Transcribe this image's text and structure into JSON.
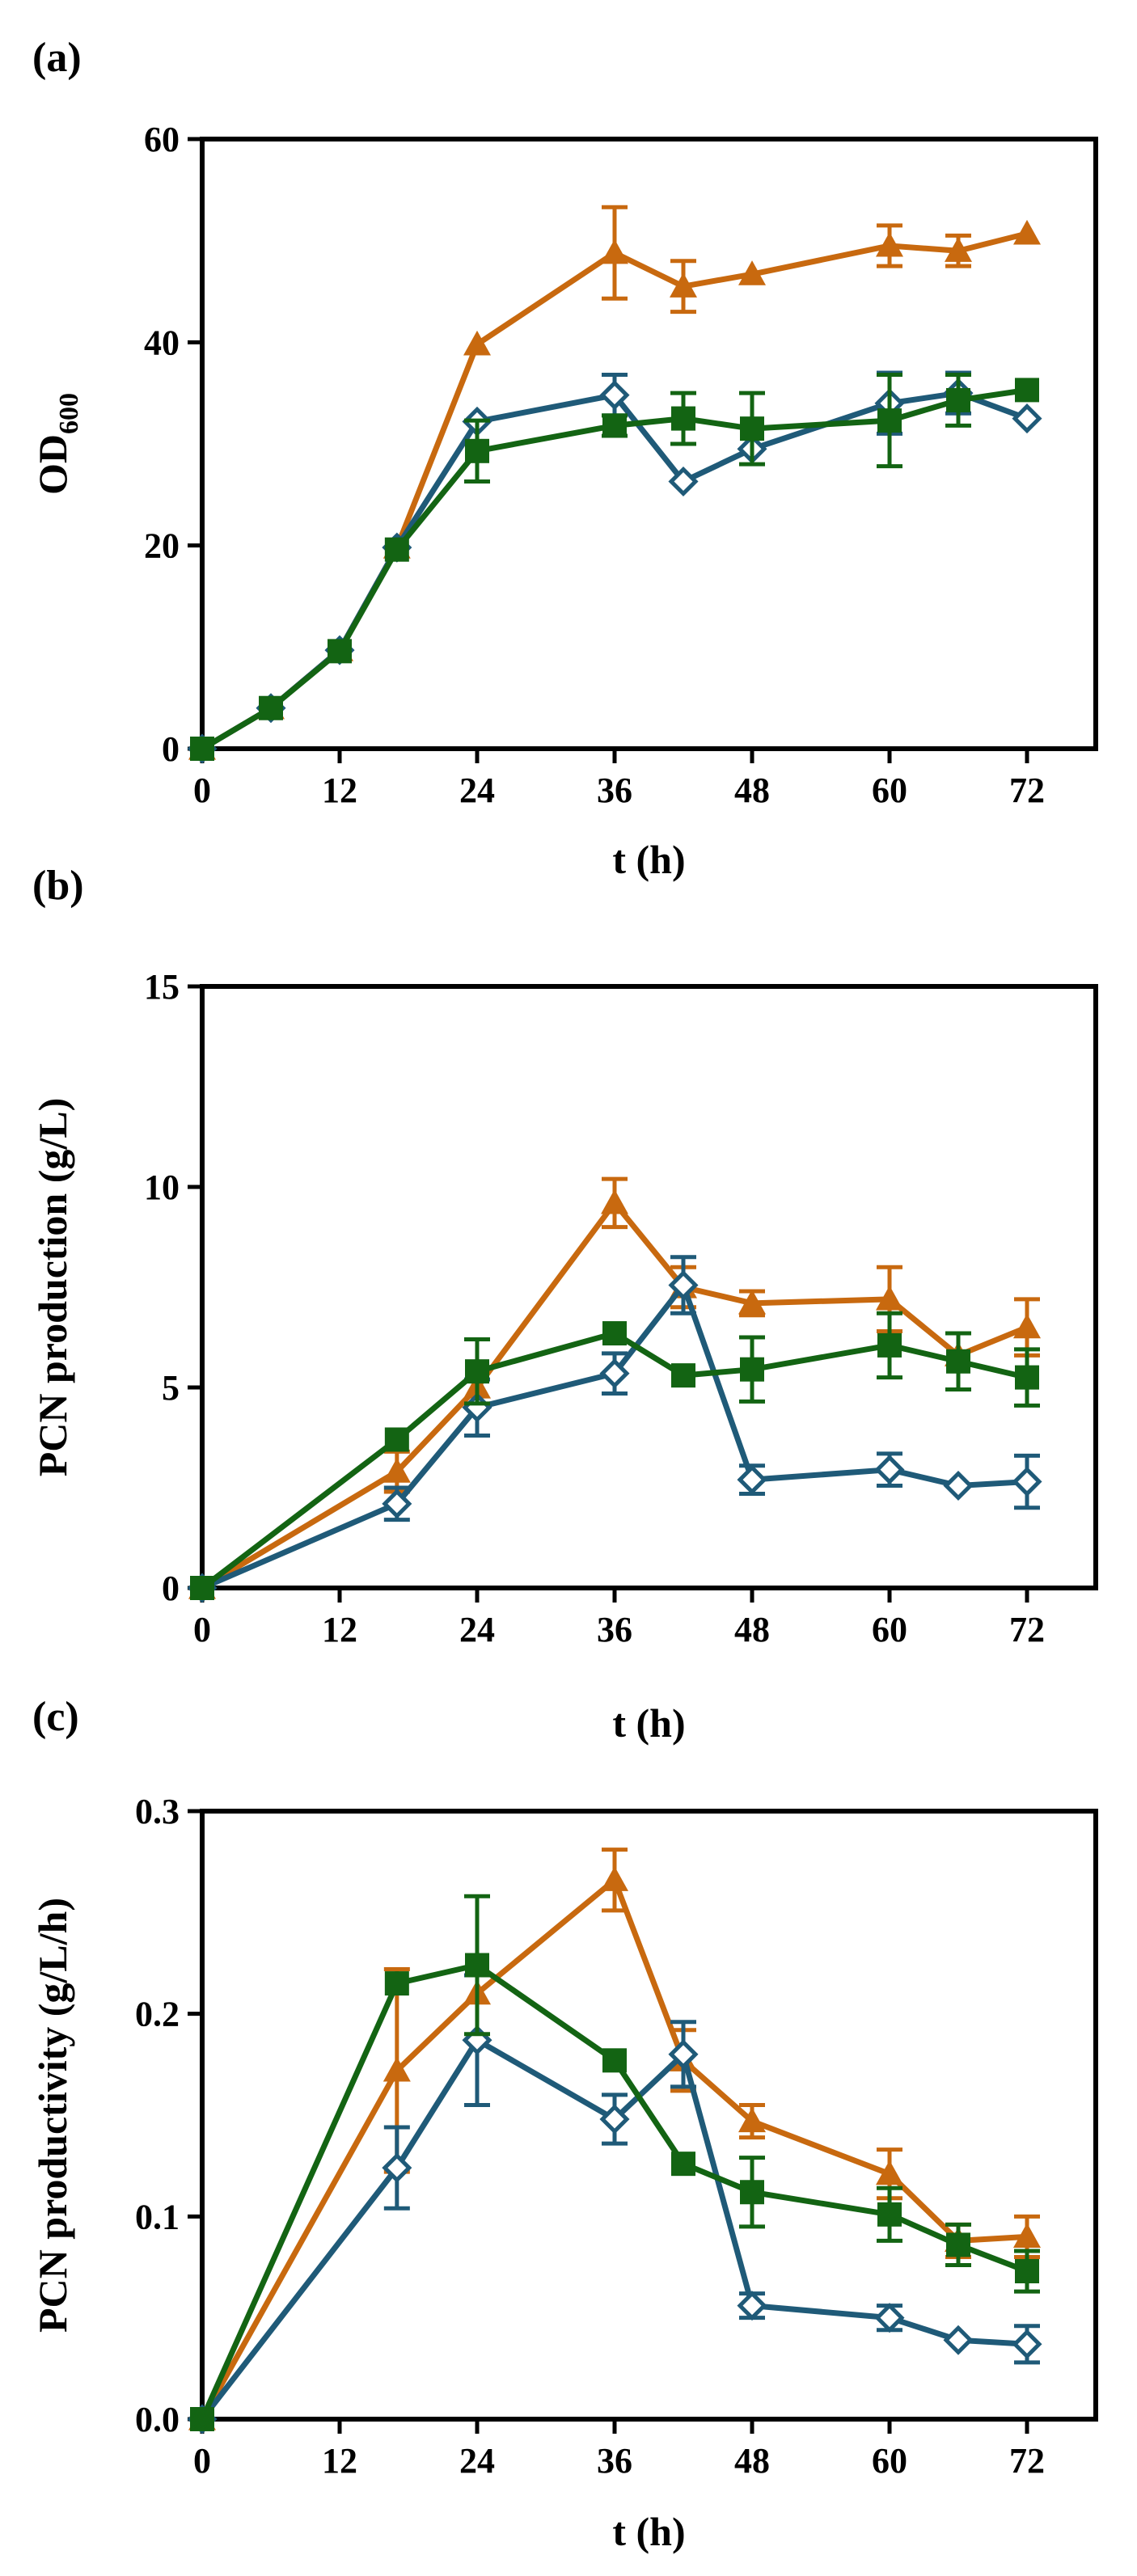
{
  "chart_data": [
    {
      "type": "line",
      "panel_label": "(a)",
      "xlabel": "t (h)",
      "ylabel": "OD",
      "ylabel_sub": "600",
      "xlim": [
        0,
        78
      ],
      "ylim": [
        0,
        60
      ],
      "xticks": [
        0,
        12,
        24,
        36,
        48,
        60,
        72
      ],
      "yticks": [
        0,
        20,
        40,
        60
      ],
      "ytick_labels": [
        "0",
        "20",
        "40",
        "60"
      ],
      "series": [
        {
          "name": "triangle-series",
          "marker": "triangle",
          "color": "#c8690f",
          "x": [
            0,
            6,
            12,
            17,
            24,
            36,
            42,
            48,
            60,
            66,
            72
          ],
          "values": [
            0,
            4,
            9.7,
            19.8,
            39.8,
            48.8,
            45.5,
            46.7,
            49.5,
            49,
            50.7
          ],
          "errors": [
            0,
            0,
            0,
            0,
            0,
            4.5,
            2.5,
            0,
            2,
            1.5,
            0
          ]
        },
        {
          "name": "diamond-series",
          "marker": "diamond",
          "color": "#1f5a78",
          "x": [
            0,
            6,
            12,
            17,
            24,
            36,
            42,
            48,
            60,
            66,
            72
          ],
          "values": [
            0,
            4,
            9.7,
            19.8,
            32.2,
            34.8,
            26.3,
            29.5,
            34,
            35,
            32.5
          ],
          "errors": [
            0,
            0,
            0,
            0,
            0,
            2,
            0,
            0,
            3,
            2,
            0
          ]
        },
        {
          "name": "square-series",
          "marker": "square",
          "color": "#136413",
          "x": [
            0,
            6,
            12,
            17,
            24,
            36,
            42,
            48,
            60,
            66,
            72
          ],
          "values": [
            0,
            4,
            9.6,
            19.6,
            29.3,
            31.8,
            32.5,
            31.5,
            32.3,
            34.3,
            35.3
          ],
          "errors": [
            0,
            0,
            0,
            0,
            3,
            1,
            2.5,
            3.5,
            4.5,
            2.5,
            0
          ]
        }
      ]
    },
    {
      "type": "line",
      "panel_label": "(b)",
      "xlabel": "t (h)",
      "ylabel": "PCN production (g/L)",
      "xlim": [
        0,
        78
      ],
      "ylim": [
        0,
        15
      ],
      "xticks": [
        0,
        12,
        24,
        36,
        48,
        60,
        72
      ],
      "yticks": [
        0,
        5,
        10,
        15
      ],
      "ytick_labels": [
        "0",
        "5",
        "10",
        "15"
      ],
      "series": [
        {
          "name": "triangle-series",
          "marker": "triangle",
          "color": "#c8690f",
          "x": [
            0,
            17,
            24,
            36,
            42,
            48,
            60,
            66,
            72
          ],
          "values": [
            0,
            2.9,
            5,
            9.6,
            7.5,
            7.1,
            7.2,
            5.8,
            6.5
          ],
          "errors": [
            0,
            0.5,
            0,
            0.6,
            0.5,
            0.3,
            0.8,
            0,
            0.7
          ]
        },
        {
          "name": "diamond-series",
          "marker": "diamond",
          "color": "#1f5a78",
          "x": [
            0,
            17,
            24,
            36,
            42,
            48,
            60,
            66,
            72
          ],
          "values": [
            0,
            2.1,
            4.5,
            5.35,
            7.55,
            2.7,
            2.95,
            2.55,
            2.65
          ],
          "errors": [
            0,
            0.4,
            0.7,
            0.5,
            0.7,
            0.35,
            0.4,
            0,
            0.65
          ]
        },
        {
          "name": "square-series",
          "marker": "square",
          "color": "#136413",
          "x": [
            0,
            17,
            24,
            36,
            42,
            48,
            60,
            66,
            72
          ],
          "values": [
            0,
            3.7,
            5.4,
            6.35,
            5.3,
            5.45,
            6.05,
            5.65,
            5.25
          ],
          "errors": [
            0,
            0,
            0.8,
            0,
            0,
            0.8,
            0.8,
            0.7,
            0.7
          ]
        }
      ]
    },
    {
      "type": "line",
      "panel_label": "(c)",
      "xlabel": "t (h)",
      "ylabel": "PCN productivity (g/L/h)",
      "xlim": [
        0,
        78
      ],
      "ylim": [
        0,
        0.3
      ],
      "xticks": [
        0,
        12,
        24,
        36,
        48,
        60,
        72
      ],
      "yticks": [
        0,
        0.1,
        0.2,
        0.3
      ],
      "ytick_labels": [
        "0.0",
        "0.1",
        "0.2",
        "0.3"
      ],
      "series": [
        {
          "name": "triangle-series",
          "marker": "triangle",
          "color": "#c8690f",
          "x": [
            0,
            17,
            24,
            36,
            42,
            48,
            60,
            66,
            72
          ],
          "values": [
            0,
            0.172,
            0.21,
            0.266,
            0.177,
            0.147,
            0.121,
            0.088,
            0.09
          ],
          "errors": [
            0,
            0.05,
            0,
            0.015,
            0.015,
            0.008,
            0.012,
            0.008,
            0.01
          ]
        },
        {
          "name": "diamond-series",
          "marker": "diamond",
          "color": "#1f5a78",
          "x": [
            0,
            17,
            24,
            36,
            42,
            48,
            60,
            66,
            72
          ],
          "values": [
            0,
            0.124,
            0.187,
            0.148,
            0.18,
            0.056,
            0.05,
            0.039,
            0.037
          ],
          "errors": [
            0,
            0.02,
            0.032,
            0.012,
            0.016,
            0.006,
            0.006,
            0,
            0.009
          ]
        },
        {
          "name": "square-series",
          "marker": "square",
          "color": "#136413",
          "x": [
            0,
            17,
            24,
            36,
            42,
            48,
            60,
            66,
            72
          ],
          "values": [
            0,
            0.215,
            0.224,
            0.177,
            0.126,
            0.112,
            0.101,
            0.086,
            0.073
          ],
          "errors": [
            0,
            0,
            0.034,
            0,
            0,
            0.017,
            0.013,
            0.01,
            0.01
          ]
        }
      ]
    }
  ]
}
